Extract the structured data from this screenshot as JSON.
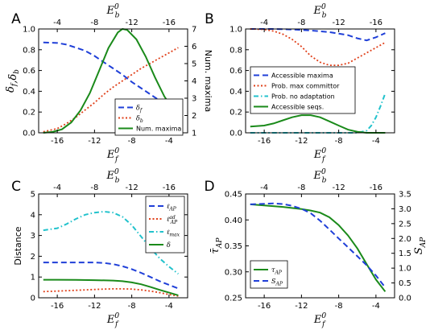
{
  "figure": {
    "panels": [
      "A",
      "B",
      "C",
      "D"
    ]
  },
  "chart_data": [
    {
      "panel": "A",
      "type": "line",
      "xlabel": "E_f^0",
      "ylabel": "δ_f, δ_b",
      "ylabel2": "Num. maxima",
      "top_xlabel": "E_b^0",
      "xlim": [
        -18,
        -2
      ],
      "ylim": [
        0,
        1.0
      ],
      "y2lim": [
        1,
        7
      ],
      "xticks": [
        -16,
        -12,
        -8,
        -4
      ],
      "yticks": [
        "0.0",
        "0.2",
        "0.4",
        "0.6",
        "0.8",
        "1.0"
      ],
      "y2ticks": [
        "1",
        "2",
        "3",
        "4",
        "5",
        "6",
        "7"
      ],
      "top_ticks": [
        {
          "label": "-4",
          "x": -16
        },
        {
          "label": "-8",
          "x": -12
        },
        {
          "label": "-12",
          "x": -8
        },
        {
          "label": "-16",
          "x": -4
        }
      ],
      "legend_position": "bottom-right",
      "series": [
        {
          "name": "δ_f",
          "style": "dashed",
          "color": "#1f3fd8",
          "axis": "left",
          "x": [
            -17.5,
            -16,
            -15,
            -14,
            -13,
            -12,
            -11,
            -10,
            -9,
            -8,
            -7,
            -6,
            -5,
            -4,
            -3
          ],
          "y": [
            0.87,
            0.865,
            0.85,
            0.82,
            0.79,
            0.74,
            0.68,
            0.62,
            0.56,
            0.49,
            0.43,
            0.37,
            0.31,
            0.25,
            0.19
          ]
        },
        {
          "name": "δ_b",
          "style": "dotted",
          "color": "#e0401a",
          "axis": "left",
          "x": [
            -17.5,
            -16,
            -15,
            -14,
            -13,
            -12,
            -11,
            -10,
            -9,
            -8,
            -7,
            -6,
            -5,
            -4,
            -3
          ],
          "y": [
            0.01,
            0.04,
            0.09,
            0.15,
            0.22,
            0.29,
            0.37,
            0.44,
            0.5,
            0.56,
            0.62,
            0.67,
            0.72,
            0.77,
            0.82
          ]
        },
        {
          "name": "Num. maxima",
          "style": "solid",
          "color": "#1a8a1a",
          "axis": "right",
          "x": [
            -17.5,
            -16.5,
            -15.5,
            -14.5,
            -13.5,
            -12.5,
            -11.5,
            -10.5,
            -9.5,
            -9,
            -8.5,
            -7.5,
            -6.5,
            -5.5,
            -4.5,
            -3.5,
            -3
          ],
          "y": [
            1.0,
            1.05,
            1.2,
            1.6,
            2.3,
            3.3,
            4.6,
            5.9,
            6.8,
            7.0,
            6.95,
            6.4,
            5.4,
            4.2,
            3.1,
            2.3,
            2.0
          ]
        }
      ]
    },
    {
      "panel": "B",
      "type": "line",
      "xlabel": "E_f^0",
      "top_xlabel": "E_b^0",
      "xlim": [
        -18,
        -2
      ],
      "ylim": [
        0,
        1.0
      ],
      "xticks": [
        -16,
        -12,
        -8,
        -4
      ],
      "yticks": [
        "0.0",
        "0.2",
        "0.4",
        "0.6",
        "0.8",
        "1.0"
      ],
      "top_ticks": [
        {
          "label": "-4",
          "x": -16
        },
        {
          "label": "-8",
          "x": -12
        },
        {
          "label": "-12",
          "x": -8
        },
        {
          "label": "-16",
          "x": -4
        }
      ],
      "legend_position": "center-left",
      "series": [
        {
          "name": "Accessible maxima",
          "style": "dashed",
          "color": "#1f3fd8",
          "x": [
            -17.5,
            -15,
            -13,
            -11,
            -9,
            -7,
            -6,
            -5,
            -4,
            -3
          ],
          "y": [
            1.0,
            1.0,
            0.995,
            0.985,
            0.97,
            0.94,
            0.91,
            0.89,
            0.92,
            0.96
          ]
        },
        {
          "name": "Prob. max committor",
          "style": "dotted",
          "color": "#e0401a",
          "x": [
            -17.5,
            -16,
            -15,
            -14,
            -13,
            -12,
            -11,
            -10,
            -9,
            -8,
            -7,
            -6,
            -5,
            -4,
            -3
          ],
          "y": [
            1.0,
            0.995,
            0.98,
            0.95,
            0.9,
            0.83,
            0.74,
            0.68,
            0.65,
            0.65,
            0.67,
            0.72,
            0.77,
            0.82,
            0.87
          ]
        },
        {
          "name": "Prob. no adaptation",
          "style": "dashdot",
          "color": "#22c2cc",
          "x": [
            -17.5,
            -10,
            -6,
            -5,
            -4.5,
            -4,
            -3.5,
            -3
          ],
          "y": [
            0.0,
            0.0,
            0.0,
            0.02,
            0.07,
            0.15,
            0.26,
            0.38
          ]
        },
        {
          "name": "Accessible seqs.",
          "style": "solid",
          "color": "#1a8a1a",
          "x": [
            -17.5,
            -16,
            -15,
            -14,
            -13,
            -12,
            -11,
            -10,
            -9,
            -8,
            -7,
            -6,
            -5,
            -4,
            -3
          ],
          "y": [
            0.06,
            0.07,
            0.09,
            0.12,
            0.15,
            0.17,
            0.17,
            0.15,
            0.11,
            0.07,
            0.03,
            0.01,
            0.0,
            0.0,
            0.0
          ]
        }
      ]
    },
    {
      "panel": "C",
      "type": "line",
      "xlabel": "E_f^0",
      "ylabel": "Distance",
      "top_xlabel": "E_b^0",
      "xlim": [
        -18,
        -2
      ],
      "ylim": [
        0,
        5
      ],
      "xticks": [
        -16,
        -12,
        -8,
        -4
      ],
      "yticks": [
        "0",
        "1",
        "2",
        "3",
        "4",
        "5"
      ],
      "top_ticks": [
        {
          "label": "-4",
          "x": -16
        },
        {
          "label": "-8",
          "x": -12
        },
        {
          "label": "-12",
          "x": -8
        },
        {
          "label": "-16",
          "x": -4
        }
      ],
      "legend_position": "top-right",
      "series": [
        {
          "name": "ℓ_AP",
          "style": "dashed",
          "color": "#1f3fd8",
          "x": [
            -17.5,
            -16,
            -14,
            -12,
            -11,
            -10,
            -9,
            -8,
            -7,
            -6,
            -5,
            -4,
            -3
          ],
          "y": [
            1.7,
            1.7,
            1.7,
            1.7,
            1.68,
            1.62,
            1.52,
            1.38,
            1.2,
            1.0,
            0.8,
            0.62,
            0.45
          ]
        },
        {
          "name": "ℓ_AP^ad",
          "style": "dotted",
          "color": "#e0401a",
          "x": [
            -17.5,
            -16,
            -14,
            -12,
            -11,
            -10,
            -9,
            -8,
            -7,
            -6,
            -5,
            -4,
            -3
          ],
          "y": [
            0.3,
            0.32,
            0.36,
            0.4,
            0.42,
            0.43,
            0.43,
            0.42,
            0.38,
            0.32,
            0.25,
            0.16,
            0.08
          ]
        },
        {
          "name": "ℓ_max",
          "style": "dashdot",
          "color": "#22c2cc",
          "x": [
            -17.5,
            -16,
            -15,
            -14,
            -13,
            -12,
            -11,
            -10,
            -9,
            -8,
            -7,
            -6,
            -5,
            -4,
            -3
          ],
          "y": [
            3.25,
            3.35,
            3.55,
            3.8,
            4.0,
            4.1,
            4.15,
            4.1,
            3.9,
            3.5,
            2.95,
            2.4,
            1.9,
            1.5,
            1.15
          ]
        },
        {
          "name": "δ",
          "style": "solid",
          "color": "#1a8a1a",
          "x": [
            -17.5,
            -16,
            -14,
            -12,
            -10,
            -9,
            -8,
            -7,
            -6,
            -5,
            -4,
            -3
          ],
          "y": [
            0.87,
            0.87,
            0.86,
            0.85,
            0.83,
            0.8,
            0.74,
            0.65,
            0.52,
            0.38,
            0.25,
            0.12
          ]
        }
      ]
    },
    {
      "panel": "D",
      "type": "line",
      "xlabel": "E_f^0",
      "ylabel": "τ̄_AP",
      "ylabel2": "S_AP",
      "top_xlabel": "E_b^0",
      "xlim": [
        -18,
        -2
      ],
      "ylim": [
        0.25,
        0.45
      ],
      "y2lim": [
        0,
        3.5
      ],
      "xticks": [
        -16,
        -12,
        -8,
        -4
      ],
      "yticks": [
        "0.25",
        "0.30",
        "0.35",
        "0.40",
        "0.45"
      ],
      "y2ticks": [
        "0.0",
        "0.5",
        "1.0",
        "1.5",
        "2.0",
        "2.5",
        "3.0",
        "3.5"
      ],
      "top_ticks": [
        {
          "label": "-4",
          "x": -16
        },
        {
          "label": "-8",
          "x": -12
        },
        {
          "label": "-12",
          "x": -8
        },
        {
          "label": "-16",
          "x": -4
        }
      ],
      "legend_position": "bottom-left",
      "series": [
        {
          "name": "τ_AP",
          "style": "solid",
          "color": "#1a8a1a",
          "axis": "left",
          "x": [
            -17.5,
            -16,
            -14,
            -12,
            -11,
            -10,
            -9,
            -8,
            -7,
            -6,
            -5,
            -4,
            -3
          ],
          "y": [
            0.43,
            0.428,
            0.425,
            0.421,
            0.418,
            0.414,
            0.405,
            0.39,
            0.37,
            0.345,
            0.315,
            0.285,
            0.262
          ]
        },
        {
          "name": "S_AP",
          "style": "dashed",
          "color": "#1f3fd8",
          "axis": "right",
          "x": [
            -17.5,
            -16,
            -15,
            -14,
            -13,
            -12,
            -11,
            -10,
            -9,
            -8,
            -7,
            -6,
            -5,
            -4,
            -3
          ],
          "y": [
            3.15,
            3.17,
            3.18,
            3.16,
            3.1,
            3.0,
            2.85,
            2.6,
            2.3,
            2.0,
            1.7,
            1.4,
            1.1,
            0.75,
            0.35
          ]
        }
      ]
    }
  ]
}
